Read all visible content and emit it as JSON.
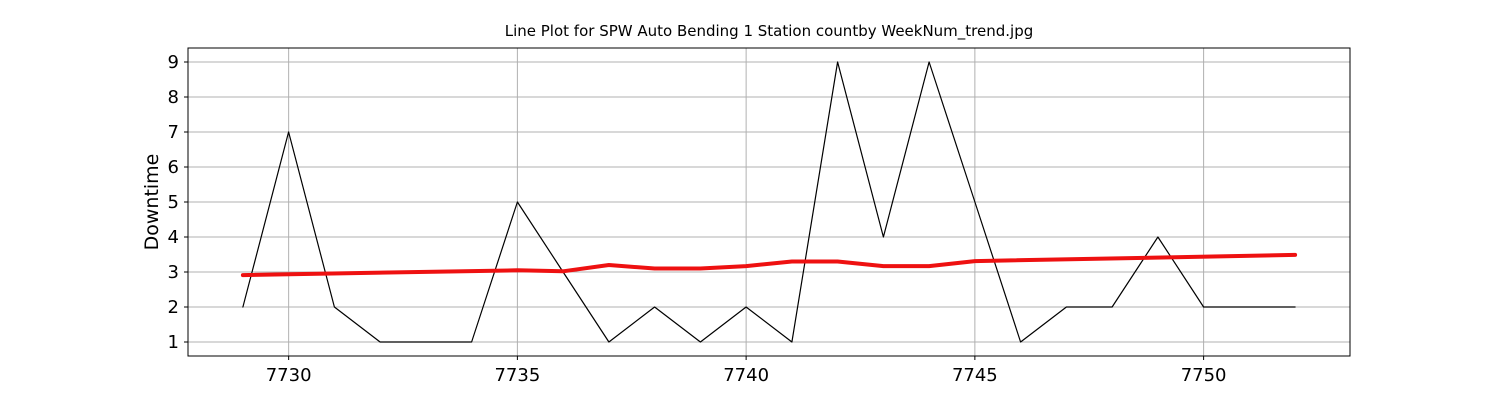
{
  "chart_data": {
    "type": "line",
    "title": "Line Plot for SPW Auto Bending 1 Station countby WeekNum_trend.jpg",
    "xlabel": "",
    "ylabel": "Downtime",
    "xlim": [
      7727.8,
      7753.2
    ],
    "ylim": [
      0.6,
      9.4
    ],
    "xticks": [
      7730,
      7735,
      7740,
      7745,
      7750
    ],
    "yticks": [
      1,
      2,
      3,
      4,
      5,
      6,
      7,
      8,
      9
    ],
    "grid": true,
    "series": [
      {
        "color": "#000000",
        "x": [
          7729,
          7730,
          7731,
          7732,
          7733,
          7734,
          7735,
          7736,
          7737,
          7738,
          7739,
          7740,
          7741,
          7742,
          7743,
          7744,
          7745,
          7746,
          7747,
          7748,
          7749,
          7750,
          7751,
          7752
        ],
        "y": [
          2,
          7,
          2,
          1,
          1,
          1,
          5,
          3,
          1,
          2,
          1,
          2,
          1,
          9,
          4,
          9,
          5,
          1,
          2,
          2,
          4,
          2,
          2,
          2
        ]
      },
      {
        "color": "#ee1111",
        "x": [
          7729,
          7735,
          7736,
          7737,
          7738,
          7739,
          7740,
          7741,
          7742,
          7743,
          7744,
          7745,
          7752
        ],
        "y": [
          2.91,
          3.05,
          3.02,
          3.2,
          3.1,
          3.1,
          3.17,
          3.3,
          3.3,
          3.17,
          3.17,
          3.31,
          3.49
        ]
      }
    ]
  }
}
